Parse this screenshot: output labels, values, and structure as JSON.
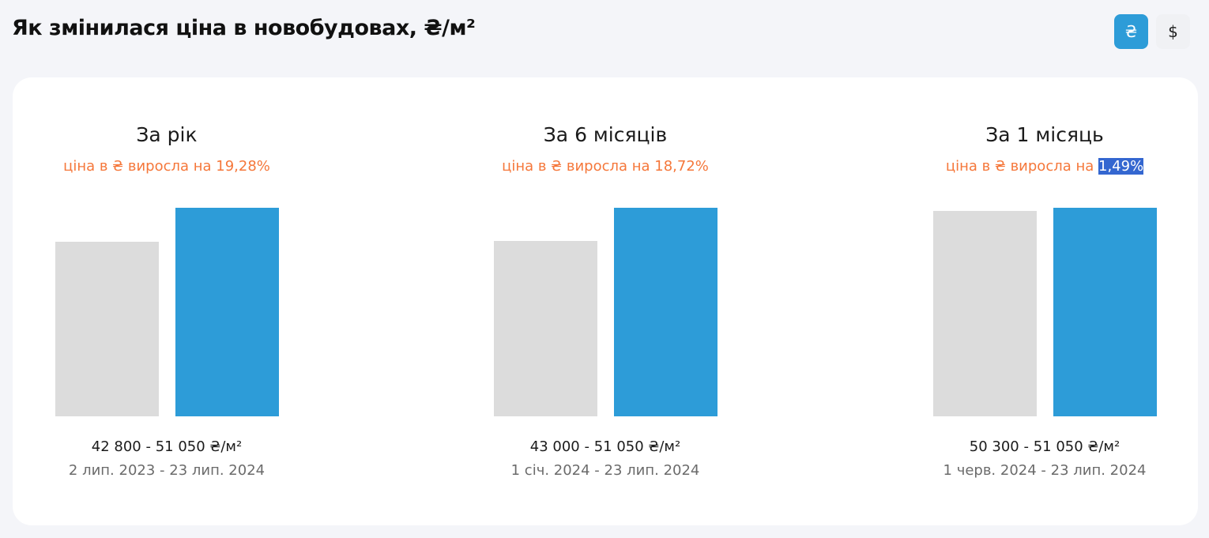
{
  "header": {
    "title": "Як змінилася ціна в новобудовах, ₴/м²",
    "currency_buttons": [
      "₴",
      "$"
    ],
    "active_button": 0
  },
  "panels": [
    {
      "title": "За рік",
      "subtitle": "ціна в ₴ виросла на",
      "change": "19,28%",
      "values": [
        42800,
        51050
      ],
      "range": "42 800 - 51 050 ₴/м²",
      "dates": "2 лип. 2023 - 23 лип. 2024"
    },
    {
      "title": "За 6 місяців",
      "subtitle": "ціна в ₴ виросла на",
      "change": "18,72%",
      "values": [
        43000,
        51050
      ],
      "range": "43 000 - 51 050 ₴/м²",
      "dates": "1 січ. 2024 - 23 лип. 2024"
    },
    {
      "title": "За 1 місяць",
      "subtitle": "ціна в ₴ виросла на",
      "change": "1,49%",
      "values": [
        50300,
        51050
      ],
      "range": "50 300 - 51 050 ₴/м²",
      "dates": "1 черв. 2024 - 23 лип. 2024",
      "highlighted": true
    }
  ],
  "bar_colors": [
    "#dcdcdc",
    "#2d9cd8"
  ]
}
